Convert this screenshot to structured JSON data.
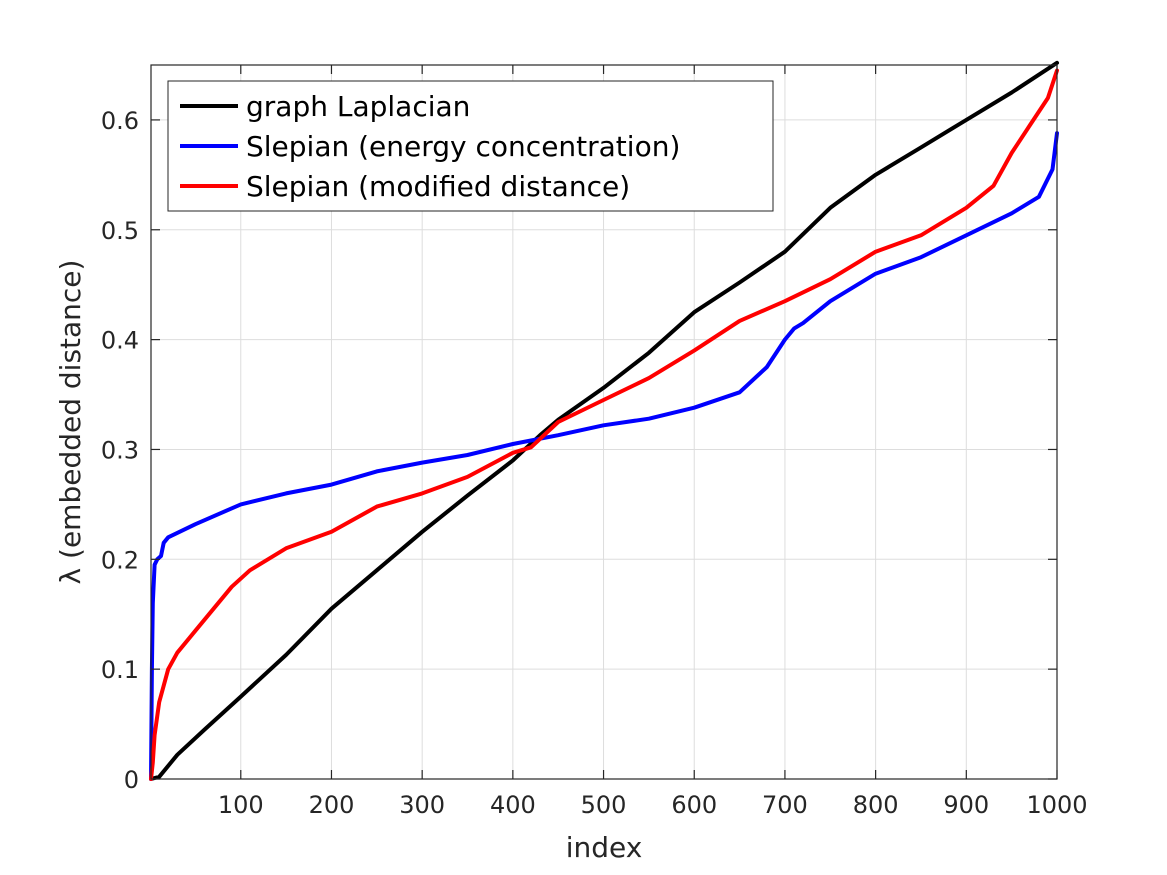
{
  "chart_data": {
    "type": "line",
    "xlabel": "index",
    "ylabel": "λ (embedded distance)",
    "xlim": [
      1,
      1000
    ],
    "ylim": [
      0,
      0.65
    ],
    "xticks": [
      "100",
      "200",
      "300",
      "400",
      "500",
      "600",
      "700",
      "800",
      "900",
      "1000"
    ],
    "yticks": [
      "0",
      "0.1",
      "0.2",
      "0.3",
      "0.4",
      "0.5",
      "0.6"
    ],
    "grid": true,
    "legend_position": "top-left",
    "series": [
      {
        "name": "graph Laplacian",
        "color": "#000000",
        "x": [
          1,
          10,
          30,
          60,
          100,
          150,
          200,
          250,
          300,
          350,
          400,
          430,
          450,
          500,
          550,
          600,
          650,
          700,
          750,
          800,
          850,
          900,
          950,
          1000
        ],
        "y": [
          0,
          0.002,
          0.022,
          0.045,
          0.075,
          0.113,
          0.155,
          0.19,
          0.225,
          0.258,
          0.29,
          0.313,
          0.327,
          0.356,
          0.388,
          0.425,
          0.452,
          0.48,
          0.52,
          0.55,
          0.575,
          0.6,
          0.625,
          0.652
        ]
      },
      {
        "name": "Slepian (energy concentration)",
        "color": "#0000ff",
        "x": [
          1,
          2,
          3,
          5,
          8,
          12,
          15,
          20,
          50,
          100,
          150,
          200,
          250,
          300,
          350,
          400,
          450,
          500,
          550,
          600,
          650,
          680,
          700,
          710,
          720,
          750,
          800,
          850,
          900,
          950,
          980,
          995,
          1000
        ],
        "y": [
          0,
          0.1,
          0.16,
          0.195,
          0.2,
          0.203,
          0.215,
          0.22,
          0.232,
          0.25,
          0.26,
          0.268,
          0.28,
          0.288,
          0.295,
          0.305,
          0.313,
          0.322,
          0.328,
          0.338,
          0.352,
          0.375,
          0.4,
          0.41,
          0.415,
          0.435,
          0.46,
          0.475,
          0.495,
          0.515,
          0.53,
          0.555,
          0.588
        ]
      },
      {
        "name": "Slepian (modified distance)",
        "color": "#ff0000",
        "x": [
          1,
          3,
          5,
          10,
          20,
          30,
          50,
          70,
          90,
          110,
          150,
          200,
          250,
          300,
          350,
          400,
          420,
          450,
          500,
          550,
          600,
          650,
          700,
          750,
          800,
          850,
          900,
          930,
          950,
          970,
          990,
          1000
        ],
        "y": [
          0,
          0.015,
          0.04,
          0.07,
          0.1,
          0.115,
          0.135,
          0.155,
          0.175,
          0.19,
          0.21,
          0.225,
          0.248,
          0.26,
          0.275,
          0.297,
          0.302,
          0.325,
          0.345,
          0.365,
          0.39,
          0.417,
          0.435,
          0.455,
          0.48,
          0.495,
          0.52,
          0.54,
          0.57,
          0.595,
          0.62,
          0.645
        ]
      }
    ]
  }
}
